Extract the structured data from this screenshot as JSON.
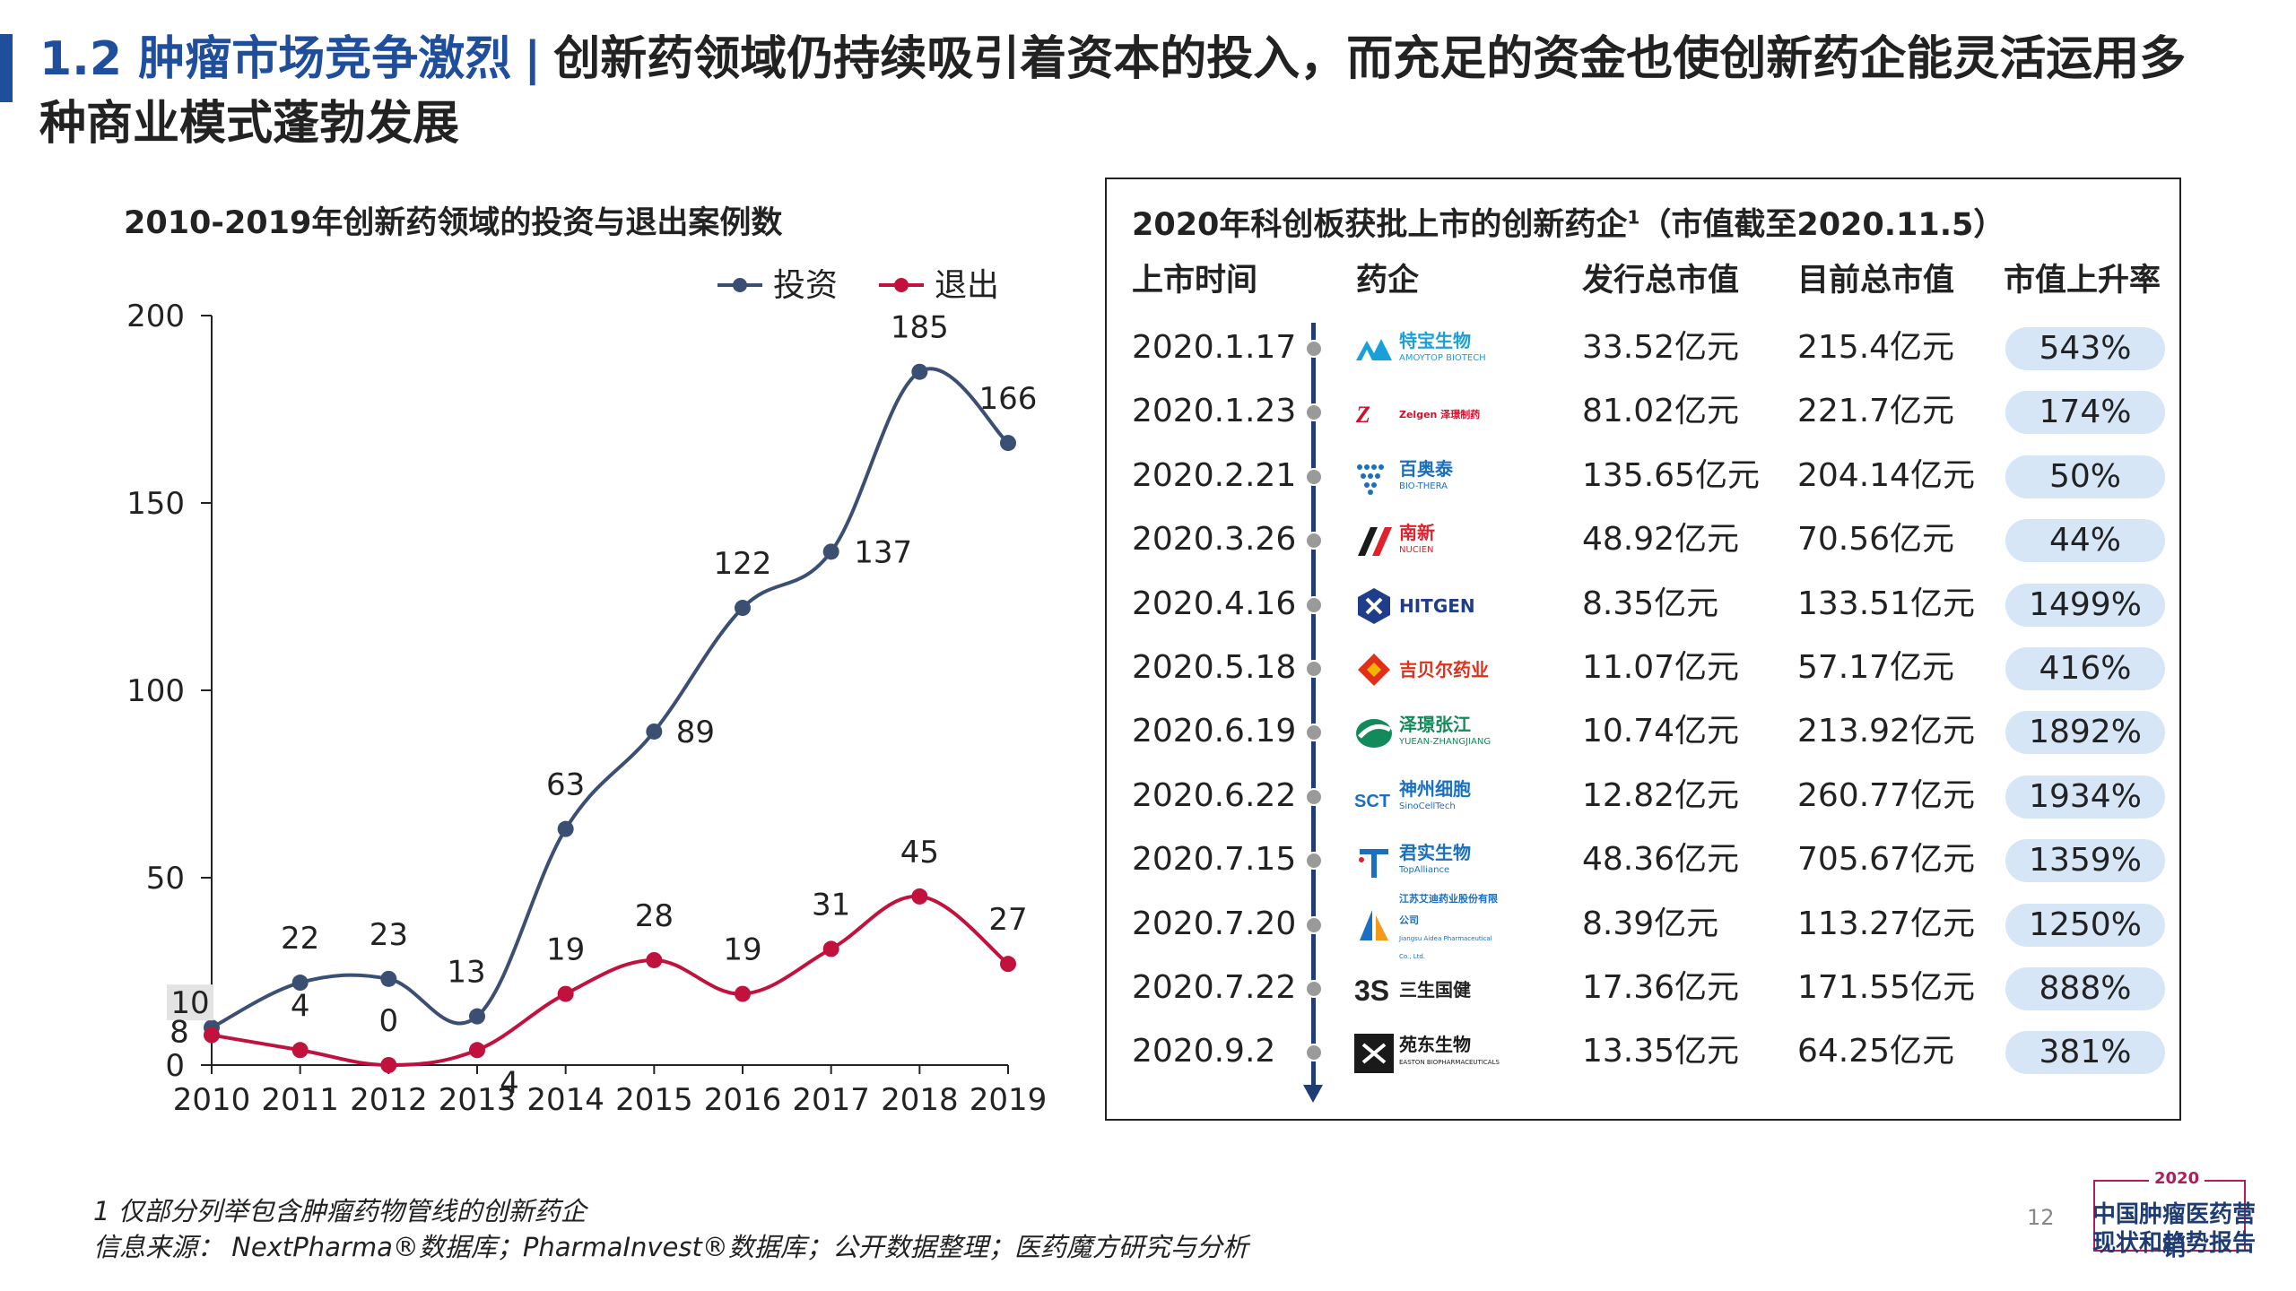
{
  "header": {
    "title_prefix": "1.2 肿瘤市场竞争激烈",
    "separator": "|",
    "title_rest": "创新药领域仍持续吸引着资本的投入，而充足的资金也使创新药企能灵活运用多种商业模式蓬勃发展"
  },
  "colors": {
    "accent_blue": "#1f4e9c",
    "invest_line": "#3a4f72",
    "exit_line": "#c0123c",
    "pill_bg": "#d6e6f7"
  },
  "chart_data": {
    "type": "line",
    "title": "2010-2019年创新药领域的投资与退出案例数",
    "x": [
      "2010",
      "2011",
      "2012",
      "2013",
      "2014",
      "2015",
      "2016",
      "2017",
      "2018",
      "2019"
    ],
    "series": [
      {
        "name": "投资",
        "values": [
          10,
          22,
          23,
          13,
          63,
          89,
          122,
          137,
          185,
          166
        ],
        "color": "#3a4f72"
      },
      {
        "name": "退出",
        "values": [
          8,
          4,
          0,
          4,
          19,
          28,
          19,
          31,
          45,
          27
        ],
        "color": "#c0123c"
      }
    ],
    "ylim": [
      0,
      200
    ],
    "yticks": [
      0,
      50,
      100,
      150,
      200
    ],
    "legend": "top-right",
    "grid": false,
    "xlabel": "",
    "ylabel": ""
  },
  "table": {
    "title": "2020年科创板获批上市的创新药企",
    "title_sup": "1",
    "title_suffix": "（市值截至2020.11.5）",
    "headers": [
      "上市时间",
      "药企",
      "发行总市值",
      "目前总市值",
      "市值上升率"
    ],
    "rows": [
      {
        "date": "2020.1.17",
        "company": "特宝生物",
        "company_sub": "AMOYTOP BIOTECH",
        "logo_icon": "mountain-logo-icon",
        "logo_color": "#1aa0d8",
        "issue": "33.52亿元",
        "current": "215.4亿元",
        "rate": "543%"
      },
      {
        "date": "2020.1.23",
        "company": "Zelgen 泽璟制药",
        "company_sub": "",
        "logo_icon": "zelgen-wordmark-icon",
        "logo_color": "#d0102a",
        "issue": "81.02亿元",
        "current": "221.7亿元",
        "rate": "174%"
      },
      {
        "date": "2020.2.21",
        "company": "百奥泰",
        "company_sub": "BIO-THERA",
        "logo_icon": "dot-matrix-logo-icon",
        "logo_color": "#1a6fc0",
        "issue": "135.65亿元",
        "current": "204.14亿元",
        "rate": "50%"
      },
      {
        "date": "2020.3.26",
        "company": "南新",
        "company_sub": "NUCIEN",
        "logo_icon": "slash-logo-icon",
        "logo_color": "#e0202a",
        "issue": "48.92亿元",
        "current": "70.56亿元",
        "rate": "44%"
      },
      {
        "date": "2020.4.16",
        "company": "HITGEN",
        "company_sub": "",
        "logo_icon": "hexagon-logo-icon",
        "logo_color": "#1f3d8a",
        "issue": "8.35亿元",
        "current": "133.51亿元",
        "rate": "1499%"
      },
      {
        "date": "2020.5.18",
        "company": "吉贝尔药业",
        "company_sub": "",
        "logo_icon": "diamond-logo-icon",
        "logo_color": "#e0301a",
        "issue": "11.07亿元",
        "current": "57.17亿元",
        "rate": "416%"
      },
      {
        "date": "2020.6.19",
        "company": "泽璟张江",
        "company_sub": "YUEAN-ZHANGJIANG",
        "logo_icon": "swoosh-logo-icon",
        "logo_color": "#138a5a",
        "issue": "10.74亿元",
        "current": "213.92亿元",
        "rate": "1892%"
      },
      {
        "date": "2020.6.22",
        "company": "神州细胞",
        "company_sub": "SinoCellTech",
        "logo_icon": "sct-logo-icon",
        "logo_color": "#1a6fc0",
        "issue": "12.82亿元",
        "current": "260.77亿元",
        "rate": "1934%"
      },
      {
        "date": "2020.7.15",
        "company": "君实生物",
        "company_sub": "TopAlliance",
        "logo_icon": "t-logo-icon",
        "logo_color": "#1a6fc0",
        "issue": "48.36亿元",
        "current": "705.67亿元",
        "rate": "1359%"
      },
      {
        "date": "2020.7.20",
        "company": "江苏艾迪药业股份有限公司",
        "company_sub": "Jiangsu Aidea Pharmaceutical Co., Ltd.",
        "logo_icon": "sail-logo-icon",
        "logo_color": "#1a6fc0",
        "issue": "8.39亿元",
        "current": "113.27亿元",
        "rate": "1250%"
      },
      {
        "date": "2020.7.22",
        "company": "三生国健",
        "company_sub": "",
        "logo_icon": "3s-logo-icon",
        "logo_color": "#222222",
        "issue": "17.36亿元",
        "current": "171.55亿元",
        "rate": "888%"
      },
      {
        "date": "2020.9.2",
        "company": "苑东生物",
        "company_sub": "EASTON BIOPHARMACEUTICALS",
        "logo_icon": "easton-logo-icon",
        "logo_color": "#1a1a1a",
        "issue": "13.35亿元",
        "current": "64.25亿元",
        "rate": "381%"
      }
    ]
  },
  "footnotes": {
    "note1": "1 仅部分列举包含肿瘤药物管线的创新药企",
    "source": "信息来源： NextPharma®数据库；PharmaInvest®数据库；公开数据整理；医药魔方研究与分析"
  },
  "page": {
    "number": "12",
    "brand_year": "2020",
    "brand_line1": "中国肿瘤医药营销",
    "brand_line2": "现状和趋势报告"
  }
}
